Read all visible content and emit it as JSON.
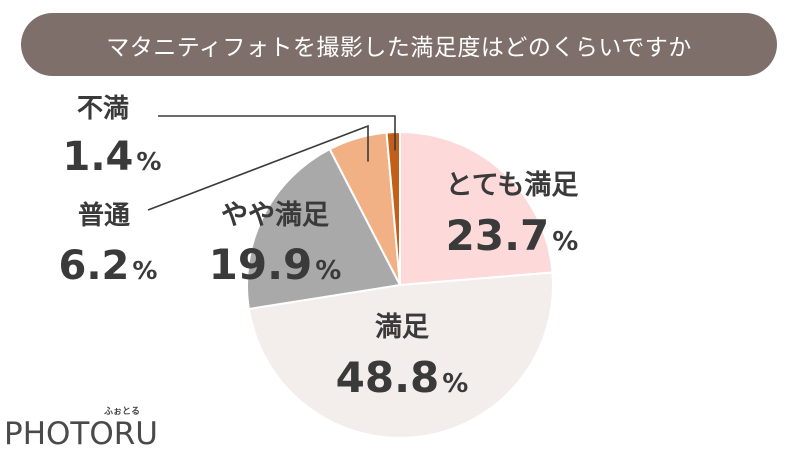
{
  "chart_data": {
    "type": "pie",
    "title": "マタニティフォトを撮影した満足度はどのくらいですか",
    "categories": [
      "とても満足",
      "満足",
      "やや満足",
      "普通",
      "不満"
    ],
    "values": [
      23.7,
      48.8,
      19.9,
      6.2,
      1.4
    ],
    "value_labels": [
      "23.7",
      "48.8",
      "19.9",
      "6.2",
      "1.4"
    ],
    "unit": "%",
    "colors": [
      "#fdd9d9",
      "#f3eeec",
      "#a9a9a9",
      "#f2b184",
      "#c45f1a"
    ]
  },
  "logo": {
    "text": "PHOTORU",
    "kana": "ふぉとる"
  }
}
